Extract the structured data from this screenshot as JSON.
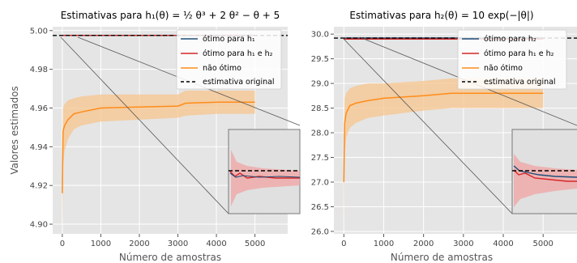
{
  "figure": {
    "ylabel": "Valores estimados"
  },
  "chart_data": [
    {
      "type": "line",
      "title": "Estimativas para h₁(θ) = ½ θ³ + 2 θ² − θ + 5",
      "xlabel": "Número de amostras",
      "ylabel": "Valores estimados",
      "xlim": [
        -250,
        5850
      ],
      "ylim": [
        4.895,
        5.002
      ],
      "xticks": [
        0,
        1000,
        2000,
        3000,
        4000,
        5000
      ],
      "xtick_labels": [
        "0",
        "1000",
        "2000",
        "3000",
        "4000",
        "5000"
      ],
      "yticks": [
        4.9,
        4.92,
        4.94,
        4.96,
        4.98,
        5.0
      ],
      "ytick_labels": [
        "4.90",
        "4.92",
        "4.94",
        "4.96",
        "4.98",
        "5.00"
      ],
      "grid": true,
      "legend_position": "top-right",
      "reference_line": {
        "name": "estimativa original",
        "y": 4.9975,
        "style": "dashed"
      },
      "series": [
        {
          "name": "ótimo para h₁",
          "color": "#1f4e79",
          "x": [
            1,
            100,
            500,
            1000,
            2000,
            3000,
            4000,
            5000
          ],
          "y": [
            4.9975,
            4.9975,
            4.9975,
            4.9975,
            4.9975,
            4.9975,
            4.9975,
            4.9975
          ]
        },
        {
          "name": "ótimo para h₁ e h₂",
          "color": "#d62728",
          "x": [
            1,
            100,
            500,
            1000,
            2000,
            3000,
            4000,
            5000
          ],
          "y": [
            4.9975,
            4.9975,
            4.9975,
            4.9975,
            4.9975,
            4.9975,
            4.9975,
            4.9975
          ]
        },
        {
          "name": "não ótimo",
          "color": "#ff8c1a",
          "x": [
            1,
            20,
            60,
            150,
            300,
            500,
            1000,
            2000,
            3000,
            3200,
            4000,
            5000
          ],
          "y": [
            4.916,
            4.948,
            4.951,
            4.954,
            4.957,
            4.958,
            4.96,
            4.9605,
            4.961,
            4.9625,
            4.963,
            4.963
          ],
          "band_lower": [
            4.896,
            4.93,
            4.938,
            4.944,
            4.949,
            4.951,
            4.953,
            4.954,
            4.955,
            4.956,
            4.957,
            4.957
          ],
          "band_upper": [
            4.936,
            4.96,
            4.962,
            4.964,
            4.965,
            4.966,
            4.967,
            4.967,
            4.967,
            4.969,
            4.969,
            4.969
          ]
        }
      ]
    },
    {
      "type": "line",
      "title": "Estimativas para h₂(θ) = 10 exp(−|θ|)",
      "xlabel": "Número de amostras",
      "ylabel": "",
      "xlim": [
        -250,
        5850
      ],
      "ylim": [
        25.95,
        30.15
      ],
      "xticks": [
        0,
        1000,
        2000,
        3000,
        4000,
        5000
      ],
      "xtick_labels": [
        "0",
        "1000",
        "2000",
        "3000",
        "4000",
        "5000"
      ],
      "yticks": [
        26.0,
        26.5,
        27.0,
        27.5,
        28.0,
        28.5,
        29.0,
        29.5,
        30.0
      ],
      "ytick_labels": [
        "26.0",
        "26.5",
        "27.0",
        "27.5",
        "28.0",
        "28.5",
        "29.0",
        "29.5",
        "30.0"
      ],
      "grid": true,
      "legend_position": "top-right",
      "reference_line": {
        "name": "estimativa original",
        "y": 29.92,
        "style": "dashed"
      },
      "series": [
        {
          "name": "ótimo para h₂",
          "color": "#1f4e79",
          "x": [
            1,
            100,
            500,
            1000,
            2000,
            3000,
            4000,
            5000
          ],
          "y": [
            29.92,
            29.92,
            29.92,
            29.92,
            29.92,
            29.92,
            29.92,
            29.92
          ]
        },
        {
          "name": "ótimo para h₁ e h₂",
          "color": "#d62728",
          "x": [
            1,
            100,
            500,
            1000,
            2000,
            3000,
            4000,
            5000
          ],
          "y": [
            29.9,
            29.9,
            29.9,
            29.9,
            29.9,
            29.9,
            29.9,
            29.9
          ]
        },
        {
          "name": "não ótimo",
          "color": "#ff8c1a",
          "x": [
            1,
            20,
            60,
            150,
            300,
            600,
            1000,
            2000,
            2700,
            3000,
            4000,
            5000
          ],
          "y": [
            27.0,
            28.2,
            28.4,
            28.55,
            28.6,
            28.65,
            28.7,
            28.75,
            28.8,
            28.8,
            28.8,
            28.8
          ],
          "band_lower": [
            26.0,
            27.6,
            27.9,
            28.1,
            28.2,
            28.3,
            28.35,
            28.45,
            28.5,
            28.5,
            28.5,
            28.5
          ],
          "band_upper": [
            27.9,
            28.7,
            28.8,
            28.9,
            28.95,
            29.0,
            29.0,
            29.05,
            29.1,
            29.1,
            29.1,
            29.1
          ]
        }
      ]
    }
  ],
  "legend": {
    "panel1": [
      "ótimo para h₁",
      "ótimo para h₁ e h₂",
      "não ótimo",
      "estimativa original"
    ],
    "panel2": [
      "ótimo para h₂",
      "ótimo para h₁ e h₂",
      "não ótimo",
      "estimativa original"
    ]
  },
  "colors": {
    "background": "#e5e5e5",
    "grid": "#ffffff",
    "optimal": "#1f4e79",
    "optimal_both": "#d62728",
    "non_optimal": "#ff8c1a",
    "non_optimal_band": "#f7c48c",
    "optimal_band": "#f0a8a8",
    "reference": "#000000"
  }
}
